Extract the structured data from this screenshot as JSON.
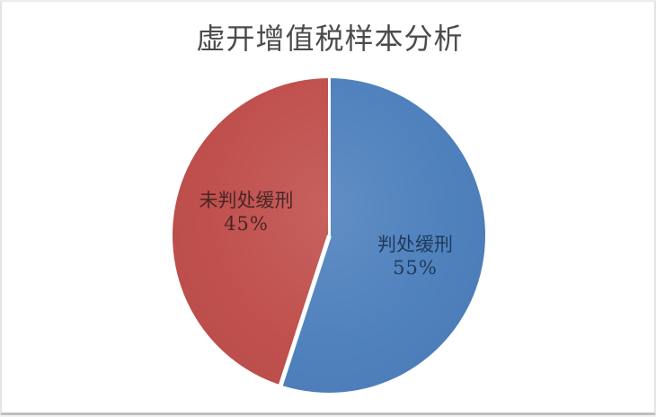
{
  "page": {
    "background": "#ffffff",
    "frame_border_color": "#e4e4e4",
    "frame_bottom_border_color": "#bfbfbf"
  },
  "chart_data": {
    "type": "pie",
    "title": "虚开增值税样本分析",
    "title_color": "#4b4b4b",
    "categories": [
      "判处缓刑",
      "未判处缓刑"
    ],
    "values": [
      55,
      45
    ],
    "slices": [
      {
        "label": "判处缓刑",
        "value": 55,
        "percent_label": "55%",
        "color": "#4f81bd",
        "label_text_color": "#1f3a5c"
      },
      {
        "label": "未判处缓刑",
        "value": 45,
        "percent_label": "45%",
        "color": "#c0504d",
        "label_text_color": "#4a2527"
      }
    ],
    "start_angle_deg": 0,
    "direction": "clockwise",
    "slice_divider_color": "#ffffff",
    "legend_position": "none",
    "labels_inside": true
  }
}
